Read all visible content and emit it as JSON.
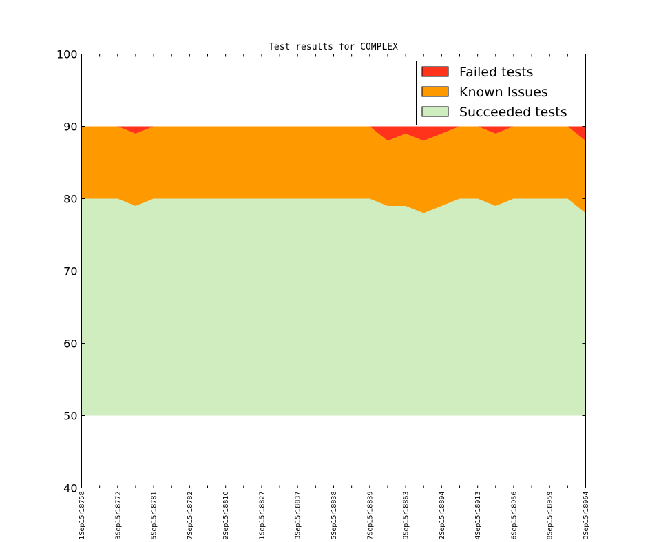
{
  "chart_data": {
    "type": "area",
    "title": "Test results for COMPLEX",
    "xlabel": "",
    "ylabel": "",
    "ylim": [
      40,
      100
    ],
    "yticks": [
      40,
      50,
      60,
      70,
      80,
      90,
      100
    ],
    "baseline": 50,
    "x_count": 29,
    "x_tick_labels": [
      {
        "index": 0,
        "label": "1Sep15r18758"
      },
      {
        "index": 2,
        "label": "3Sep15r18772"
      },
      {
        "index": 4,
        "label": "5Sep15r18781"
      },
      {
        "index": 6,
        "label": "7Sep15r18782"
      },
      {
        "index": 8,
        "label": "9Sep15r18810"
      },
      {
        "index": 10,
        "label": "1Sep15r18827"
      },
      {
        "index": 12,
        "label": "3Sep15r18837"
      },
      {
        "index": 14,
        "label": "5Sep15r18838"
      },
      {
        "index": 16,
        "label": "7Sep15r18839"
      },
      {
        "index": 18,
        "label": "9Sep15r18863"
      },
      {
        "index": 20,
        "label": "2Sep15r18894"
      },
      {
        "index": 22,
        "label": "4Sep15r18913"
      },
      {
        "index": 24,
        "label": "6Sep15r18956"
      },
      {
        "index": 26,
        "label": "8Sep15r18959"
      },
      {
        "index": 28,
        "label": "0Sep15r18964"
      }
    ],
    "series": [
      {
        "name": "Succeeded tests",
        "color": "#cfedbf",
        "top": [
          80,
          80,
          80,
          79,
          80,
          80,
          80,
          80,
          80,
          80,
          80,
          80,
          80,
          80,
          80,
          80,
          80,
          79,
          79,
          78,
          79,
          80,
          80,
          79,
          80,
          80,
          80,
          80,
          78
        ]
      },
      {
        "name": "Known Issues",
        "color": "#ff9900",
        "top": [
          90,
          90,
          90,
          89,
          90,
          90,
          90,
          90,
          90,
          90,
          90,
          90,
          90,
          90,
          90,
          90,
          90,
          88,
          89,
          88,
          89,
          90,
          90,
          89,
          90,
          90,
          90,
          90,
          88
        ]
      },
      {
        "name": "Failed tests",
        "color": "#ff331c",
        "top": [
          90,
          90,
          90,
          90,
          90,
          90,
          90,
          90,
          90,
          90,
          90,
          90,
          90,
          90,
          90,
          90,
          90,
          90,
          90,
          90,
          90,
          90,
          90,
          90,
          90,
          90,
          90,
          90,
          90
        ]
      }
    ],
    "legend": {
      "placement": "top-right",
      "entries": [
        {
          "label": "Failed tests",
          "color": "#ff331c"
        },
        {
          "label": "Known Issues",
          "color": "#ff9900"
        },
        {
          "label": "Succeeded tests",
          "color": "#cfedbf"
        }
      ]
    },
    "grid": false
  }
}
